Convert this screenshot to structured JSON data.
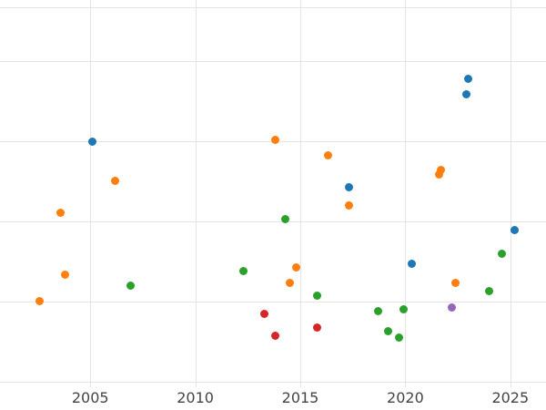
{
  "figure": {
    "title": "",
    "background": "#ffffff"
  },
  "chart_data": {
    "type": "scatter",
    "title": "",
    "xlabel": "",
    "ylabel": "",
    "grid": true,
    "legend": "none",
    "grid_color": "#e4e4e4",
    "tick_label_color": "#444444",
    "marker_size_px": 9,
    "xlim": [
      2000.7,
      2026.7
    ],
    "ylim": [
      -0.07,
      4.76
    ],
    "x_ticks": [
      2005,
      2010,
      2015,
      2020,
      2025
    ],
    "x_tick_labels": [
      "2005",
      "2010",
      "2015",
      "2020",
      "2025"
    ],
    "y_grid_values": [
      0,
      1,
      2,
      3,
      4,
      4.67
    ],
    "series": [
      {
        "name": "blue",
        "color": "#1f77b4",
        "points": [
          [
            2005.1,
            2.99
          ],
          [
            2017.3,
            2.42
          ],
          [
            2020.3,
            1.47
          ],
          [
            2022.9,
            3.59
          ],
          [
            2023.0,
            3.78
          ],
          [
            2025.2,
            1.89
          ]
        ]
      },
      {
        "name": "orange",
        "color": "#ff7f0e",
        "points": [
          [
            2002.6,
            1.01
          ],
          [
            2003.6,
            2.11
          ],
          [
            2003.8,
            1.33
          ],
          [
            2006.2,
            2.51
          ],
          [
            2013.8,
            3.02
          ],
          [
            2014.5,
            1.23
          ],
          [
            2014.8,
            1.43
          ],
          [
            2016.3,
            2.82
          ],
          [
            2017.3,
            2.2
          ],
          [
            2021.6,
            2.58
          ],
          [
            2021.7,
            2.64
          ],
          [
            2022.4,
            1.23
          ]
        ]
      },
      {
        "name": "green",
        "color": "#2ca02c",
        "points": [
          [
            2006.9,
            1.2
          ],
          [
            2012.3,
            1.38
          ],
          [
            2014.3,
            2.03
          ],
          [
            2015.8,
            1.07
          ],
          [
            2018.7,
            0.88
          ],
          [
            2019.2,
            0.63
          ],
          [
            2019.7,
            0.55
          ],
          [
            2019.9,
            0.9
          ],
          [
            2024.0,
            1.13
          ],
          [
            2024.6,
            1.59
          ]
        ]
      },
      {
        "name": "red",
        "color": "#d62728",
        "points": [
          [
            2013.3,
            0.84
          ],
          [
            2013.8,
            0.57
          ],
          [
            2015.8,
            0.67
          ]
        ]
      },
      {
        "name": "purple",
        "color": "#9467bd",
        "points": [
          [
            2022.2,
            0.93
          ]
        ]
      }
    ]
  }
}
